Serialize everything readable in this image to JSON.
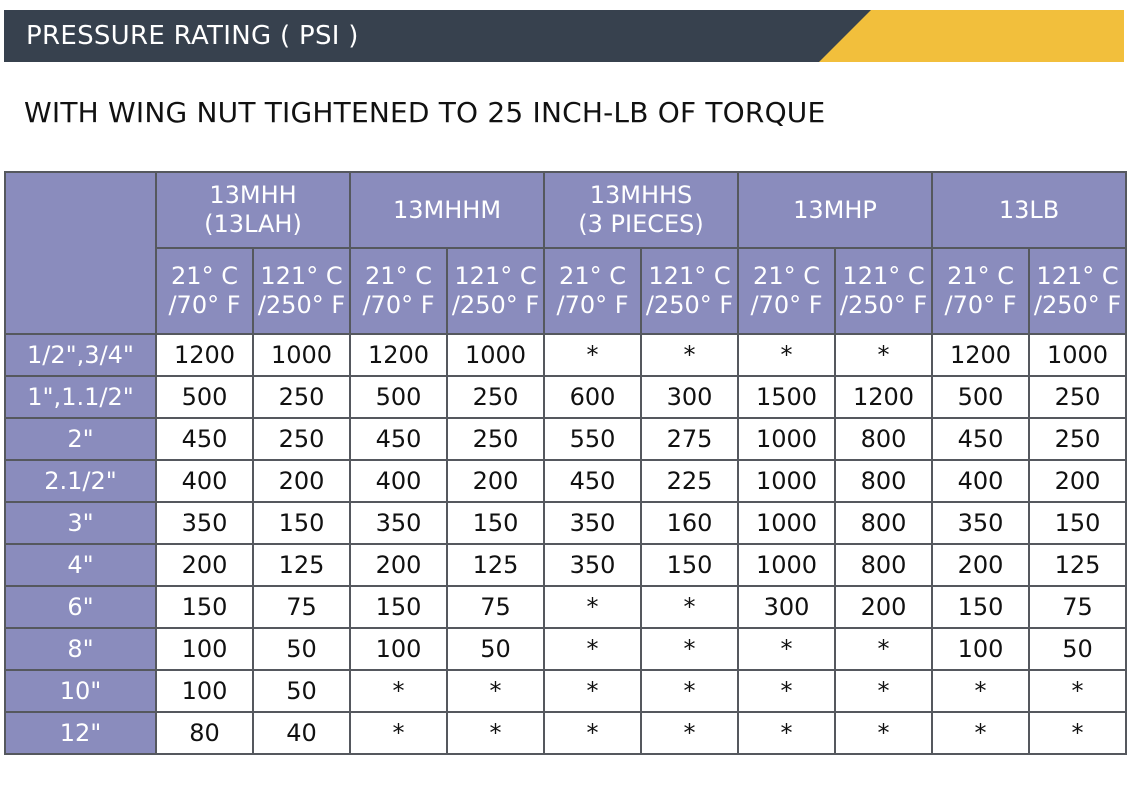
{
  "banner": {
    "title": "PRESSURE RATING ( PSI )",
    "dark_color": "#37414e",
    "accent_color": "#f2bf3c"
  },
  "subtitle": "WITH WING NUT TIGHTENED TO 25 INCH-LB OF TORQUE",
  "table": {
    "header_color": "#8a8cbd",
    "products": [
      {
        "line1": "13MHH",
        "line2": "(13LAH)"
      },
      {
        "line1": "13MHHM",
        "line2": ""
      },
      {
        "line1": "13MHHS",
        "line2": "(3 PIECES)"
      },
      {
        "line1": "13MHP",
        "line2": ""
      },
      {
        "line1": "13LB",
        "line2": ""
      }
    ],
    "temps": [
      {
        "line1": "21° C",
        "line2": "/70° F"
      },
      {
        "line1": "121° C",
        "line2": "/250° F"
      }
    ],
    "rows": [
      {
        "size": "1/2\",3/4\"",
        "values": [
          "1200",
          "1000",
          "1200",
          "1000",
          "*",
          "*",
          "*",
          "*",
          "1200",
          "1000"
        ]
      },
      {
        "size": "1\",1.1/2\"",
        "values": [
          "500",
          "250",
          "500",
          "250",
          "600",
          "300",
          "1500",
          "1200",
          "500",
          "250"
        ]
      },
      {
        "size": "2\"",
        "values": [
          "450",
          "250",
          "450",
          "250",
          "550",
          "275",
          "1000",
          "800",
          "450",
          "250"
        ]
      },
      {
        "size": "2.1/2\"",
        "values": [
          "400",
          "200",
          "400",
          "200",
          "450",
          "225",
          "1000",
          "800",
          "400",
          "200"
        ]
      },
      {
        "size": "3\"",
        "values": [
          "350",
          "150",
          "350",
          "150",
          "350",
          "160",
          "1000",
          "800",
          "350",
          "150"
        ]
      },
      {
        "size": "4\"",
        "values": [
          "200",
          "125",
          "200",
          "125",
          "350",
          "150",
          "1000",
          "800",
          "200",
          "125"
        ]
      },
      {
        "size": "6\"",
        "values": [
          "150",
          "75",
          "150",
          "75",
          "*",
          "*",
          "300",
          "200",
          "150",
          "75"
        ]
      },
      {
        "size": "8\"",
        "values": [
          "100",
          "50",
          "100",
          "50",
          "*",
          "*",
          "*",
          "*",
          "100",
          "50"
        ]
      },
      {
        "size": "10\"",
        "values": [
          "100",
          "50",
          "*",
          "*",
          "*",
          "*",
          "*",
          "*",
          "*",
          "*"
        ]
      },
      {
        "size": "12\"",
        "values": [
          "80",
          "40",
          "*",
          "*",
          "*",
          "*",
          "*",
          "*",
          "*",
          "*"
        ]
      }
    ]
  }
}
